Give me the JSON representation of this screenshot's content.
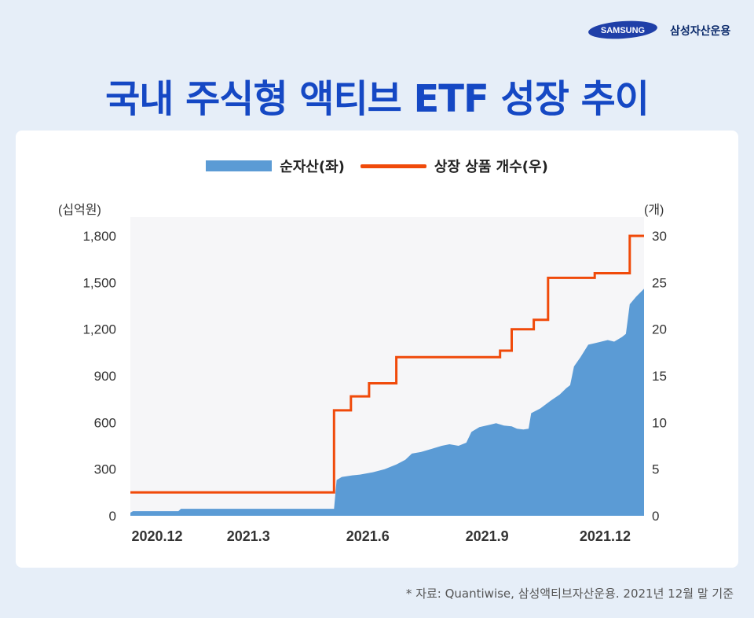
{
  "header": {
    "logo_text": "SAMSUNG",
    "brand_name": "삼성자산운용",
    "title": "국내 주식형 액티브 ETF 성장 추이"
  },
  "colors": {
    "title": "#1548c4",
    "area": "#5b9bd5",
    "line": "#f04a0a",
    "logo_bg": "#1f3fa8",
    "background": "#e6eef8"
  },
  "chart_data": {
    "type": "area+line",
    "legend": [
      {
        "label": "순자산(좌)",
        "kind": "area"
      },
      {
        "label": "상장 상품 개수(우)",
        "kind": "line"
      }
    ],
    "y_left_label": "(십억원)",
    "y_right_label": "(개)",
    "y_left_ticks": [
      "1,800",
      "1,500",
      "1,200",
      "900",
      "600",
      "300",
      "0"
    ],
    "y_right_ticks": [
      "30",
      "25",
      "20",
      "15",
      "10",
      "5",
      "0"
    ],
    "y_left_lim": [
      0,
      1800
    ],
    "y_right_lim": [
      0,
      30
    ],
    "x_ticks": [
      {
        "label": "2020.12",
        "date": "2020-12-01"
      },
      {
        "label": "2021.3",
        "date": "2021-03-01"
      },
      {
        "label": "2021.6",
        "date": "2021-06-01"
      },
      {
        "label": "2021.9",
        "date": "2021-09-01"
      },
      {
        "label": "2021.12",
        "date": "2021-12-01"
      }
    ],
    "x_range": [
      "2020-11-30",
      "2021-12-31"
    ],
    "series": [
      {
        "name": "순자산(좌)",
        "type": "area",
        "points": [
          [
            "2020-11-30",
            20
          ],
          [
            "2020-12-02",
            30
          ],
          [
            "2021-01-06",
            30
          ],
          [
            "2021-01-08",
            45
          ],
          [
            "2021-02-10",
            45
          ],
          [
            "2021-03-15",
            45
          ],
          [
            "2021-04-19",
            45
          ],
          [
            "2021-05-06",
            45
          ],
          [
            "2021-05-08",
            230
          ],
          [
            "2021-05-12",
            250
          ],
          [
            "2021-05-20",
            260
          ],
          [
            "2021-05-26",
            265
          ],
          [
            "2021-06-05",
            280
          ],
          [
            "2021-06-14",
            300
          ],
          [
            "2021-06-23",
            330
          ],
          [
            "2021-06-30",
            360
          ],
          [
            "2021-07-05",
            400
          ],
          [
            "2021-07-12",
            410
          ],
          [
            "2021-07-20",
            430
          ],
          [
            "2021-07-28",
            450
          ],
          [
            "2021-08-03",
            460
          ],
          [
            "2021-08-10",
            450
          ],
          [
            "2021-08-16",
            470
          ],
          [
            "2021-08-20",
            540
          ],
          [
            "2021-08-26",
            570
          ],
          [
            "2021-09-03",
            585
          ],
          [
            "2021-09-08",
            595
          ],
          [
            "2021-09-14",
            580
          ],
          [
            "2021-09-20",
            575
          ],
          [
            "2021-09-24",
            560
          ],
          [
            "2021-09-29",
            555
          ],
          [
            "2021-10-03",
            560
          ],
          [
            "2021-10-05",
            660
          ],
          [
            "2021-10-12",
            690
          ],
          [
            "2021-10-20",
            740
          ],
          [
            "2021-10-27",
            780
          ],
          [
            "2021-11-01",
            820
          ],
          [
            "2021-11-04",
            840
          ],
          [
            "2021-11-07",
            960
          ],
          [
            "2021-11-12",
            1020
          ],
          [
            "2021-11-18",
            1100
          ],
          [
            "2021-11-23",
            1110
          ],
          [
            "2021-11-28",
            1120
          ],
          [
            "2021-12-03",
            1130
          ],
          [
            "2021-12-08",
            1120
          ],
          [
            "2021-12-14",
            1150
          ],
          [
            "2021-12-17",
            1170
          ],
          [
            "2021-12-20",
            1360
          ],
          [
            "2021-12-25",
            1410
          ],
          [
            "2021-12-31",
            1460
          ]
        ]
      },
      {
        "name": "상장 상품 개수(우)",
        "type": "step",
        "points": [
          [
            "2020-11-30",
            2.5
          ],
          [
            "2021-05-06",
            11.3
          ],
          [
            "2021-05-19",
            12.8
          ],
          [
            "2021-06-02",
            14.2
          ],
          [
            "2021-06-23",
            17
          ],
          [
            "2021-09-11",
            17.7
          ],
          [
            "2021-09-20",
            20
          ],
          [
            "2021-10-07",
            21
          ],
          [
            "2021-10-18",
            25.5
          ],
          [
            "2021-11-23",
            26
          ],
          [
            "2021-12-20",
            30
          ],
          [
            "2021-12-31",
            30
          ]
        ]
      }
    ]
  },
  "footnote": "* 자료: Quantiwise, 삼성액티브자산운용. 2021년 12월 말 기준"
}
